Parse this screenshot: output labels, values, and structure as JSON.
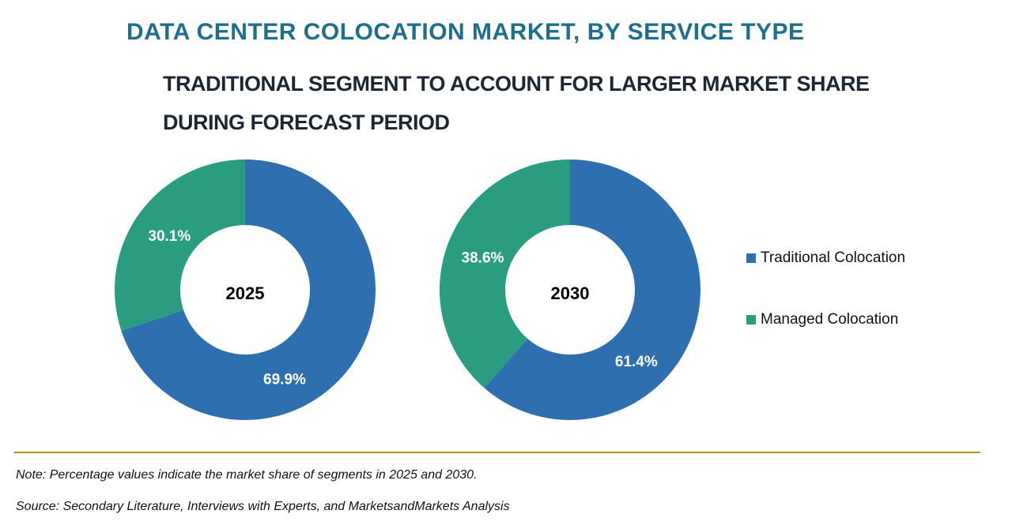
{
  "chart_data": [
    {
      "type": "pie",
      "variant": "donut",
      "center_label": "2025",
      "series": [
        {
          "name": "Traditional Colocation",
          "value": 69.9,
          "label": "69.9%"
        },
        {
          "name": "Managed Colocation",
          "value": 30.1,
          "label": "30.1%"
        }
      ]
    },
    {
      "type": "pie",
      "variant": "donut",
      "center_label": "2030",
      "series": [
        {
          "name": "Traditional Colocation",
          "value": 61.4,
          "label": "61.4%"
        },
        {
          "name": "Managed Colocation",
          "value": 38.6,
          "label": "38.6%"
        }
      ]
    }
  ],
  "title": "DATA CENTER COLOCATION MARKET, BY SERVICE TYPE",
  "subtitle": "TRADITIONAL SEGMENT TO ACCOUNT FOR LARGER MARKET SHARE DURING FORECAST PERIOD",
  "legend": [
    {
      "label": "Traditional Colocation",
      "color": "#2e6fb0"
    },
    {
      "label": "Managed Colocation",
      "color": "#2a9d80"
    }
  ],
  "note": "Note: Percentage values indicate the market share of segments in 2025 and 2030.",
  "source": "Source: Secondary Literature, Interviews with Experts, and MarketsandMarkets Analysis"
}
